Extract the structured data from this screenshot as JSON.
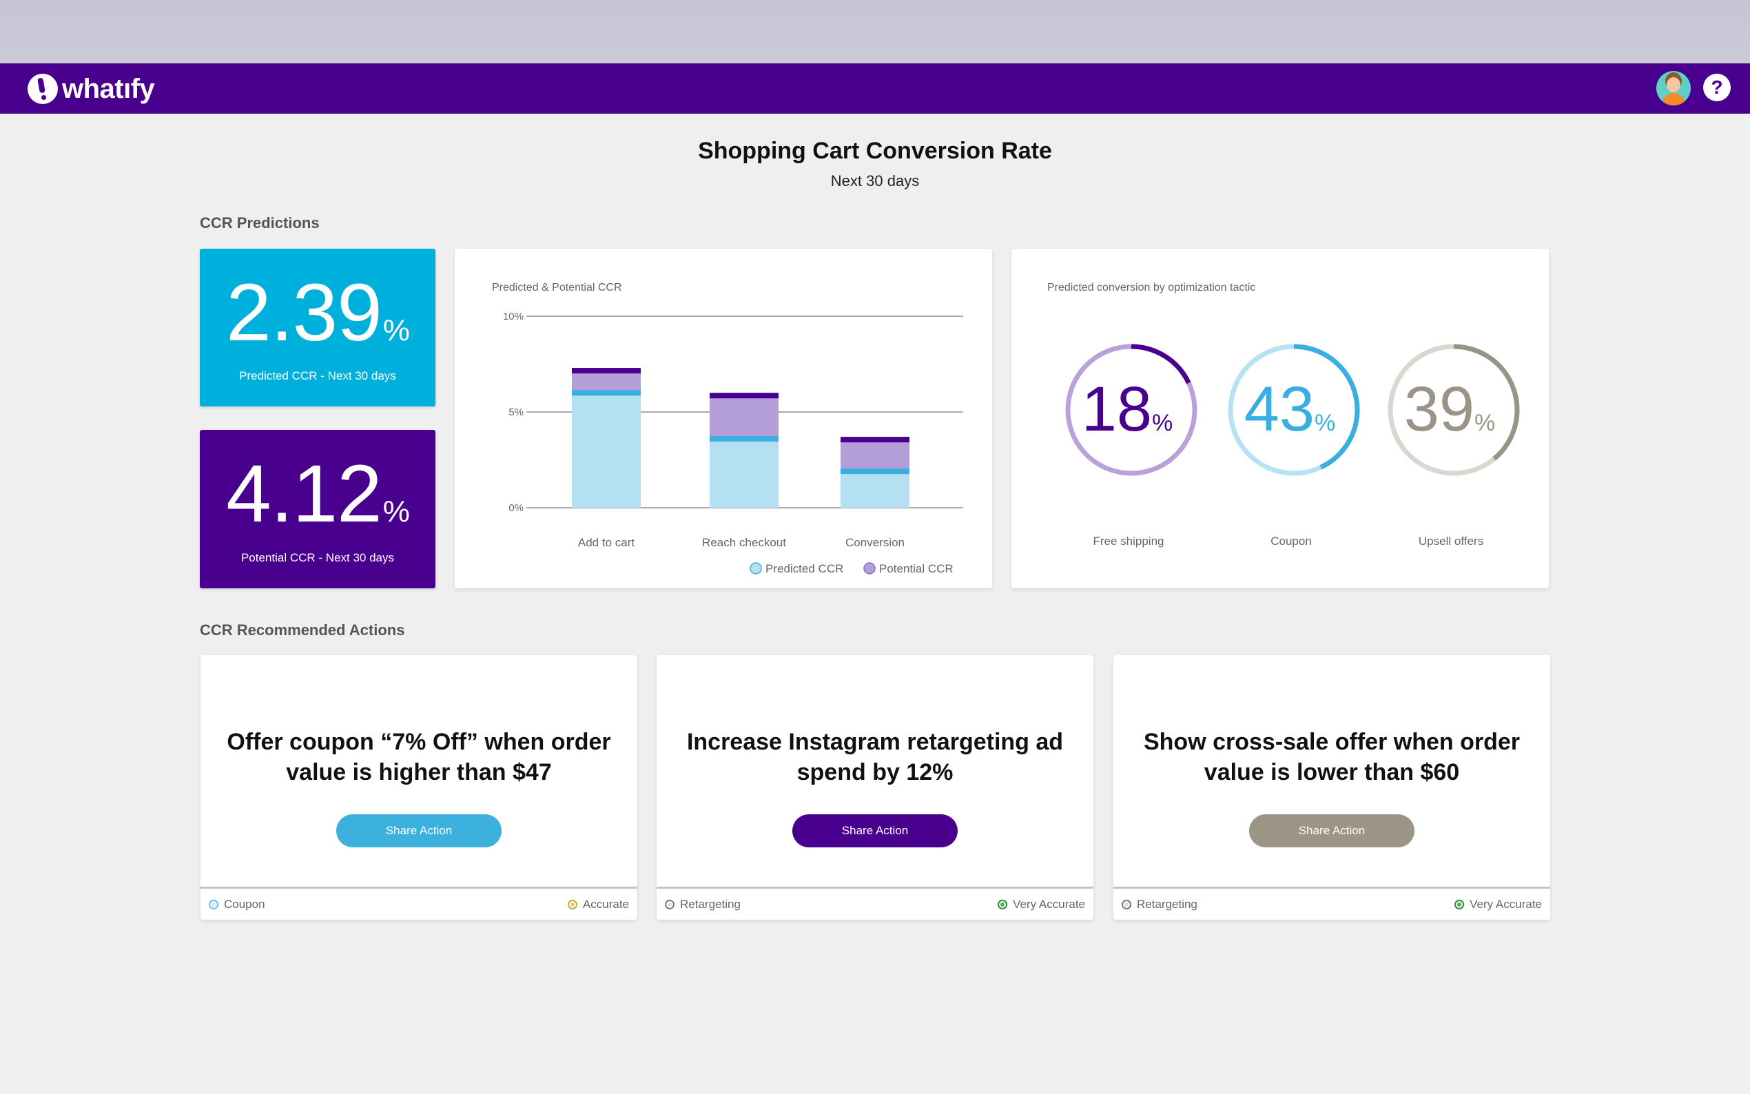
{
  "app": {
    "logo_text": "whatıfy"
  },
  "header": {
    "help_label": "?"
  },
  "page": {
    "title": "Shopping Cart Conversion Rate",
    "subtitle": "Next 30 days"
  },
  "sections": {
    "predictions": "CCR Predictions",
    "actions": "CCR Recommended Actions"
  },
  "kpis": {
    "predicted": {
      "value": "2.39",
      "unit": "%",
      "caption": "Predicted CCR - Next 30 days",
      "color": "#00b0dc"
    },
    "potential": {
      "value": "4.12",
      "unit": "%",
      "caption": "Potential CCR - Next 30 days",
      "color": "#4a008f"
    }
  },
  "chart_data": [
    {
      "type": "bar",
      "title": "Predicted & Potential CCR",
      "categories": [
        "Add to cart",
        "Reach checkout",
        "Conversion"
      ],
      "series": [
        {
          "name": "Predicted CCR",
          "values": [
            6.0,
            3.6,
            1.9
          ],
          "color": "#b4e0f2"
        },
        {
          "name": "Potential CCR",
          "values": [
            1.3,
            2.4,
            1.8
          ],
          "color": "#b39ed8"
        }
      ],
      "yticks": [
        "0%",
        "5%",
        "10%"
      ],
      "ylim": [
        0,
        10
      ],
      "legend": "bottom-right"
    },
    {
      "type": "pie",
      "title": "Predicted conversion by optimization tactic",
      "items": [
        {
          "label": "Free shipping",
          "value": 18,
          "unit": "%",
          "color": "#4a008f",
          "track": "#b9a2dc"
        },
        {
          "label": "Coupon",
          "value": 43,
          "unit": "%",
          "color": "#3aaee0",
          "track": "#b7e2f4"
        },
        {
          "label": "Upsell offers",
          "value": 39,
          "unit": "%",
          "color": "#9a9487",
          "track": "#d9d7d0"
        }
      ]
    }
  ],
  "actions": [
    {
      "text": "Offer coupon “7% Off” when order value is higher than $47",
      "button": "Share Action",
      "color": "#3db1dd",
      "tag": "Coupon",
      "accuracy": "Accurate"
    },
    {
      "text": "Increase Instagram retargeting ad spend by 12%",
      "button": "Share Action",
      "color": "#4a008f",
      "tag": "Retargeting",
      "accuracy": "Very Accurate"
    },
    {
      "text": "Show cross-sale offer when order value is lower than $60",
      "button": "Share Action",
      "color": "#9c9585",
      "tag": "Retargeting",
      "accuracy": "Very Accurate"
    }
  ]
}
